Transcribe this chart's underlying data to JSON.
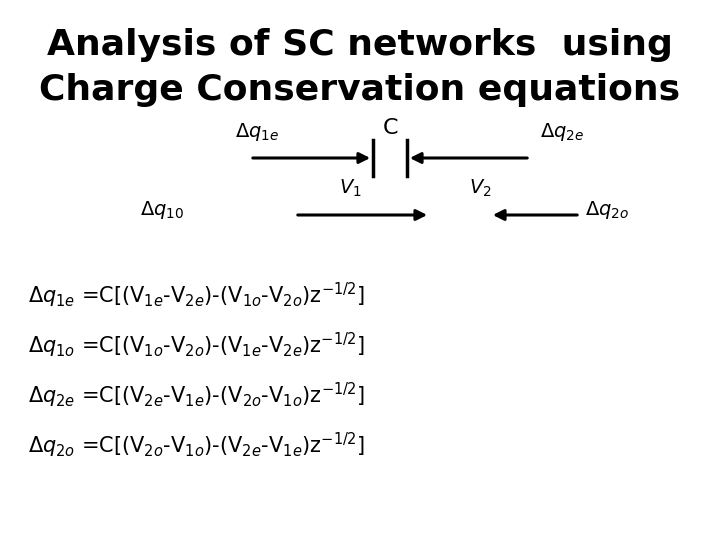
{
  "title_line1": "Analysis of SC networks  using",
  "title_line2": "Charge Conservation equations",
  "title_fontsize": 26,
  "title_fontweight": "bold",
  "bg_color": "#ffffff",
  "text_color": "#000000",
  "eq_fontsize": 15,
  "label_fontsize": 13,
  "circ_label_fontsize": 14
}
